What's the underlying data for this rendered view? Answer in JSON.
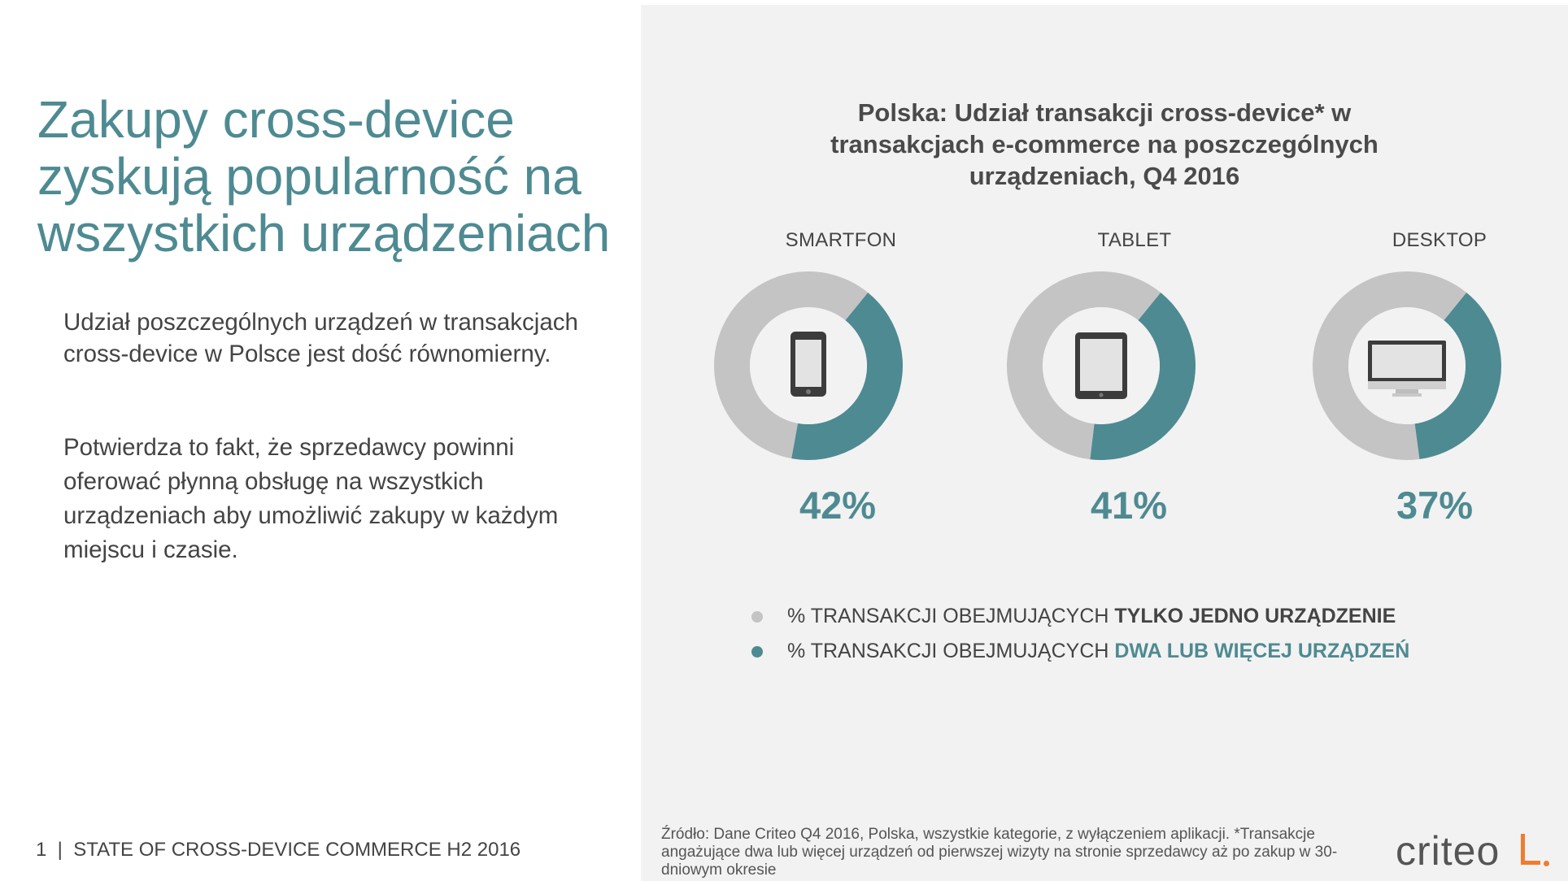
{
  "headline": [
    "Zakupy cross-device",
    "zyskują popularność na",
    "wszystkich urządzeniach"
  ],
  "paragraph1": "Udział poszczególnych urządzeń w transakcjach cross-device w Polsce jest dość równomierny.",
  "paragraph2": "Potwierdza to fakt, że sprzedawcy powinni oferować płynną obsługę na wszystkich urządzeniach aby umożliwić zakupy w każdym miejscu i czasie.",
  "footer": "1  |  STATE OF CROSS-DEVICE COMMERCE H2 2016",
  "source": "Źródło: Dane Criteo Q4 2016, Polska, wszystkie kategorie, z wyłączeniem aplikacji. *Transakcje angażujące dwa lub więcej urządzeń od pierwszej wizyty na stronie sprzedawcy aż po zakup w 30-dniowym okresie",
  "logo": "criteo",
  "colors": {
    "accent": "#4e8a92",
    "single_device": "#c4c4c4",
    "background_right": "#f2f2f2"
  },
  "icons": [
    "smartphone-icon",
    "tablet-icon",
    "desktop-monitor-icon"
  ],
  "legend": [
    {
      "prefix": "% TRANSAKCJI OBEJMUJĄCYCH ",
      "emphasis": "TYLKO JEDNO URZĄDZENIE",
      "color": "#c4c4c4"
    },
    {
      "prefix": "% TRANSAKCJI OBEJMUJĄCYCH ",
      "emphasis": "DWA LUB WIĘCEJ URZĄDZEŃ",
      "color": "#4e8a92"
    }
  ],
  "chart_data": {
    "type": "pie",
    "title": [
      "Polska: Udział transakcji cross-device* w",
      "transakcjach e-commerce na poszczególnych",
      "urządzeniach, Q4 2016"
    ],
    "categories": [
      "SMARTFON",
      "TABLET",
      "DESKTOP"
    ],
    "value_labels": [
      "42%",
      "41%",
      "37%"
    ],
    "series": [
      {
        "name": "% TRANSAKCJI OBEJMUJĄCYCH DWA LUB WIĘCEJ URZĄDZEŃ",
        "values": [
          42,
          41,
          37
        ]
      },
      {
        "name": "% TRANSAKCJI OBEJMUJĄCYCH TYLKO JEDNO URZĄDZENIE",
        "values": [
          58,
          59,
          63
        ]
      }
    ]
  }
}
